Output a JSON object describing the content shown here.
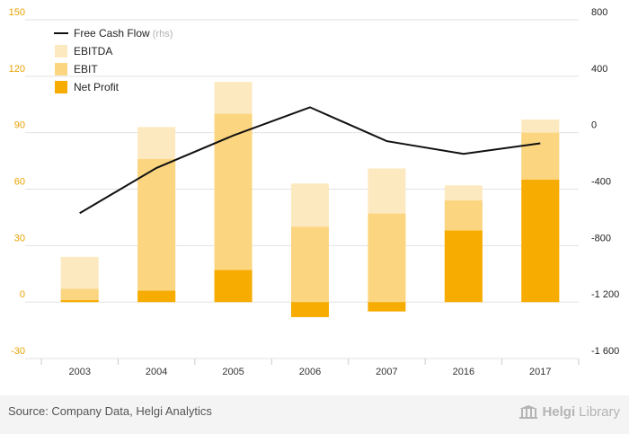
{
  "chart_data": {
    "type": "bar+line",
    "categories": [
      "2003",
      "2004",
      "2005",
      "2006",
      "2007",
      "2016",
      "2017"
    ],
    "series": [
      {
        "name": "EBITDA",
        "kind": "bar",
        "axis": "left",
        "color": "#fde9bf",
        "values": [
          24,
          93,
          117,
          63,
          71,
          62,
          97
        ]
      },
      {
        "name": "EBIT",
        "kind": "bar",
        "axis": "left",
        "color": "#fcd580",
        "values": [
          7,
          76,
          100,
          40,
          47,
          54,
          90
        ]
      },
      {
        "name": "Net Profit",
        "kind": "bar",
        "axis": "left",
        "color": "#f6ac00",
        "values": [
          1,
          6,
          17,
          -8,
          -5,
          38,
          65
        ]
      },
      {
        "name": "Free Cash Flow",
        "kind": "line",
        "axis": "right",
        "color": "#111111",
        "values": [
          -570,
          -250,
          -20,
          180,
          -60,
          -150,
          -75
        ]
      }
    ],
    "left_axis": {
      "ticks": [
        "150",
        "120",
        "90",
        "60",
        "30",
        "0",
        "-30"
      ],
      "min": -30,
      "max": 150
    },
    "right_axis": {
      "ticks": [
        "800",
        "400",
        "0",
        "-400",
        "-800",
        "-1 200",
        "-1 600"
      ],
      "min": -1600,
      "max": 800
    },
    "legend": [
      {
        "label": "Free Cash Flow",
        "suffix": "(rhs)",
        "kind": "line",
        "color": "#111111"
      },
      {
        "label": "EBITDA",
        "kind": "box",
        "color": "#fde9bf"
      },
      {
        "label": "EBIT",
        "kind": "box",
        "color": "#fcd580"
      },
      {
        "label": "Net Profit",
        "kind": "box",
        "color": "#f6ac00"
      }
    ],
    "legend_position": "top-left"
  },
  "colors": {
    "left_tick": "#e8a200",
    "right_tick": "#222222",
    "grid": "#e2e2e2",
    "footer_bg": "#f4f4f4"
  },
  "footer": {
    "source": "Source: Company Data, Helgi Analytics",
    "brand_prefix": "Helgi",
    "brand_suffix": "Library",
    "brand_icon": "library-columns-icon"
  }
}
